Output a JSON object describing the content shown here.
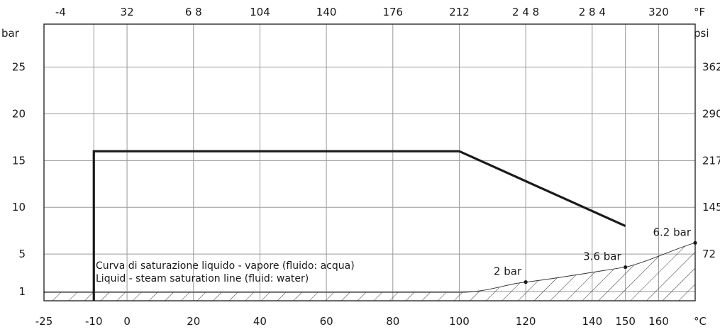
{
  "chart_data": {
    "type": "line",
    "x_label_bottom": "°C",
    "x_label_top": "°F",
    "y_label_left": "bar",
    "y_label_right": "psi",
    "x_ticks_celsius": [
      {
        "v": -25,
        "label": "-25"
      },
      {
        "v": -10,
        "label": "-10"
      },
      {
        "v": 0,
        "label": "0"
      },
      {
        "v": 20,
        "label": "20"
      },
      {
        "v": 40,
        "label": "40"
      },
      {
        "v": 60,
        "label": "60"
      },
      {
        "v": 80,
        "label": "80"
      },
      {
        "v": 100,
        "label": "100"
      },
      {
        "v": 120,
        "label": "120"
      },
      {
        "v": 140,
        "label": "140"
      },
      {
        "v": 150,
        "label": "150"
      },
      {
        "v": 160,
        "label": "160"
      }
    ],
    "x_ticks_fahrenheit": [
      {
        "v": -4,
        "label": "-4"
      },
      {
        "v": 32,
        "label": "32"
      },
      {
        "v": 68,
        "label": "6 8"
      },
      {
        "v": 104,
        "label": "104"
      },
      {
        "v": 140,
        "label": "140"
      },
      {
        "v": 176,
        "label": "176"
      },
      {
        "v": 212,
        "label": "212"
      },
      {
        "v": 248,
        "label": "2 4 8"
      },
      {
        "v": 284,
        "label": "2 8 4"
      },
      {
        "v": 320,
        "label": "320"
      }
    ],
    "y_ticks_bar": [
      {
        "v": 1,
        "label": "1"
      },
      {
        "v": 5,
        "label": "5"
      },
      {
        "v": 10,
        "label": "10"
      },
      {
        "v": 15,
        "label": "15"
      },
      {
        "v": 20,
        "label": "20"
      },
      {
        "v": 25,
        "label": "25"
      }
    ],
    "y_ticks_psi": [
      {
        "v": 5,
        "label": "72"
      },
      {
        "v": 10,
        "label": "145"
      },
      {
        "v": 15,
        "label": "217"
      },
      {
        "v": 20,
        "label": "290"
      },
      {
        "v": 25,
        "label": "362"
      }
    ],
    "xlim_celsius": [
      -25,
      171
    ],
    "ylim_bar": [
      0,
      29.6
    ],
    "grid": true,
    "series": [
      {
        "color": "#1a1a1a",
        "points": [
          [
            -10,
            0
          ],
          [
            -10,
            16
          ],
          [
            100,
            16
          ],
          [
            150,
            8
          ]
        ]
      }
    ],
    "saturation_curve": {
      "points": [
        [
          -25,
          0.9
        ],
        [
          100,
          0.9
        ],
        [
          120,
          2
        ],
        [
          150,
          3.6
        ],
        [
          171,
          6.2
        ]
      ],
      "marker_points": [
        {
          "x": 120,
          "y": 2,
          "label": "2 bar"
        },
        {
          "x": 150,
          "y": 3.6,
          "label": "3.6 bar"
        },
        {
          "x": 171,
          "y": 6.2,
          "label": "6.2 bar"
        }
      ],
      "caption_it": "Curva di saturazione liquido - vapore (fluido: acqua)",
      "caption_en": "Liquid - steam saturation line (fluid: water)"
    }
  }
}
